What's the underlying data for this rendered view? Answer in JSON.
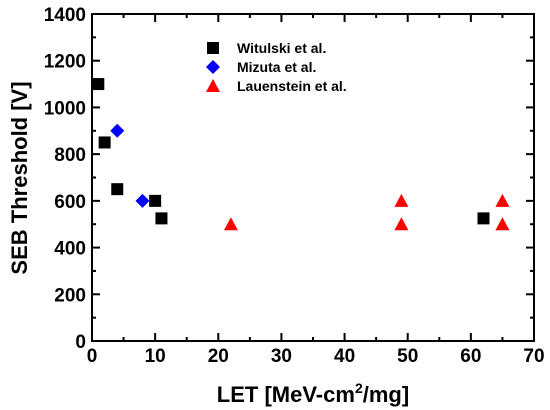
{
  "chart_data": {
    "type": "scatter",
    "xlabel": {
      "main": "LET [MeV-cm",
      "sup": "2",
      "tail": "/mg]"
    },
    "ylabel": "SEB Threshold [V]",
    "xlim": [
      0,
      70
    ],
    "ylim": [
      0,
      1400
    ],
    "xticks": [
      0,
      10,
      20,
      30,
      40,
      50,
      60,
      70
    ],
    "yticks": [
      0,
      200,
      400,
      600,
      800,
      1000,
      1200,
      1400
    ],
    "legend_position": "top-center",
    "grid": false,
    "series": [
      {
        "name": "Witulski et al.",
        "marker": "square",
        "color": "#000000",
        "points": [
          [
            1,
            1100
          ],
          [
            2,
            850
          ],
          [
            4,
            650
          ],
          [
            10,
            600
          ],
          [
            11,
            525
          ],
          [
            62,
            525
          ]
        ]
      },
      {
        "name": "Mizuta et al.",
        "marker": "diamond",
        "color": "#0000ff",
        "points": [
          [
            4,
            900
          ],
          [
            8,
            600
          ]
        ]
      },
      {
        "name": "Lauenstein et al.",
        "marker": "triangle",
        "color": "#ff0000",
        "points": [
          [
            22,
            500
          ],
          [
            49,
            600
          ],
          [
            49,
            500
          ],
          [
            65,
            600
          ],
          [
            65,
            500
          ]
        ]
      }
    ]
  }
}
